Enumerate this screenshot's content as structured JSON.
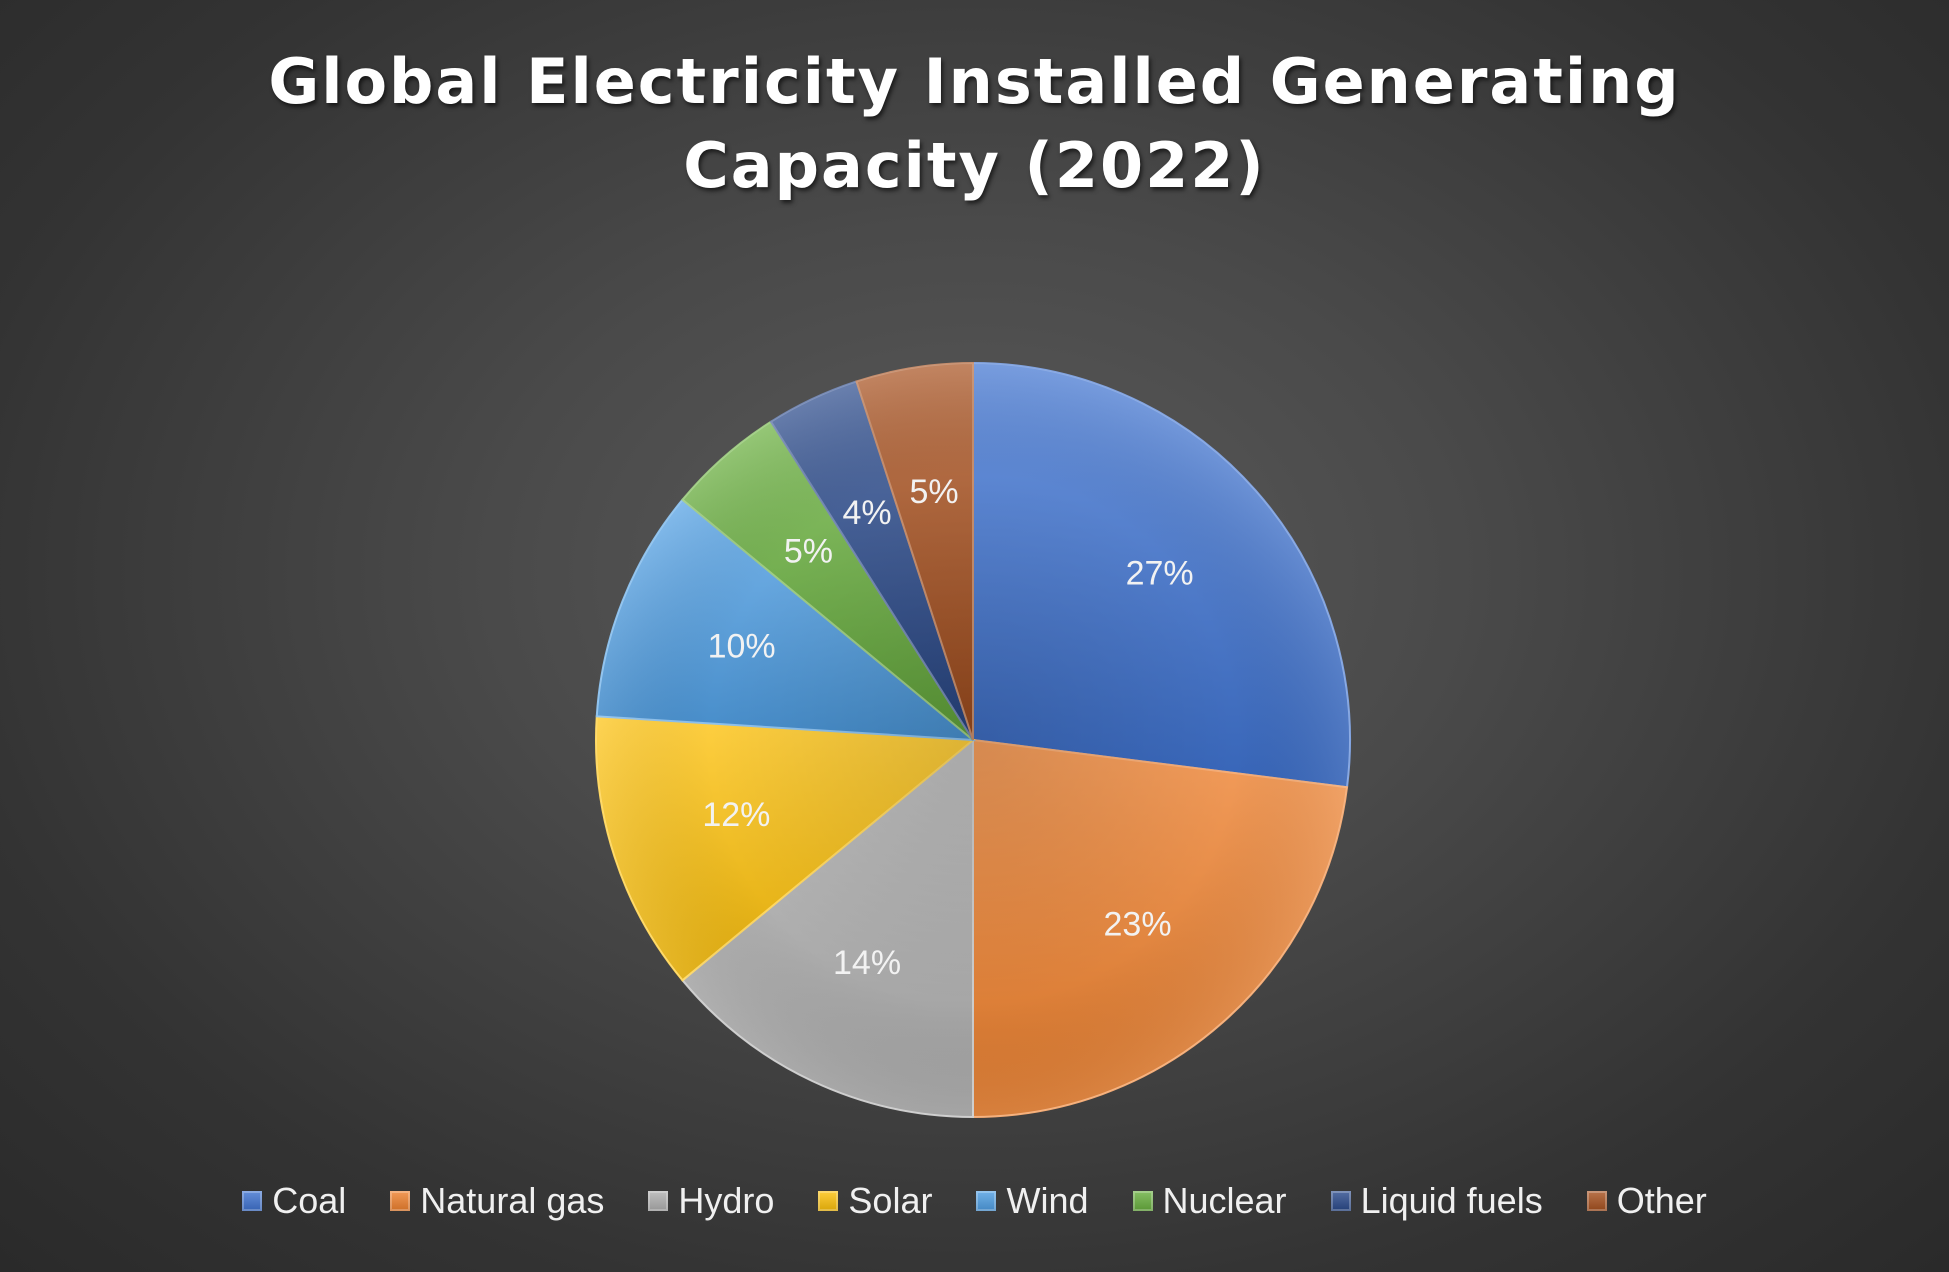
{
  "chart_data": {
    "type": "pie",
    "title_lines": [
      "Global Electricity Installed Generating",
      "Capacity (2022)"
    ],
    "categories": [
      "Coal",
      "Natural gas",
      "Hydro",
      "Solar",
      "Wind",
      "Nuclear",
      "Liquid fuels",
      "Other"
    ],
    "values": [
      27,
      23,
      14,
      12,
      10,
      5,
      4,
      5
    ],
    "value_labels": [
      "27%",
      "23%",
      "14%",
      "12%",
      "10%",
      "5%",
      "4%",
      "5%"
    ],
    "colors": [
      "#3f73d1",
      "#f0812e",
      "#b0b0b0",
      "#fec20b",
      "#4f9fe4",
      "#69b03e",
      "#2a4a8c",
      "#a8511f"
    ],
    "legend_position": "bottom",
    "start_angle": "12 o'clock",
    "direction": "clockwise"
  }
}
